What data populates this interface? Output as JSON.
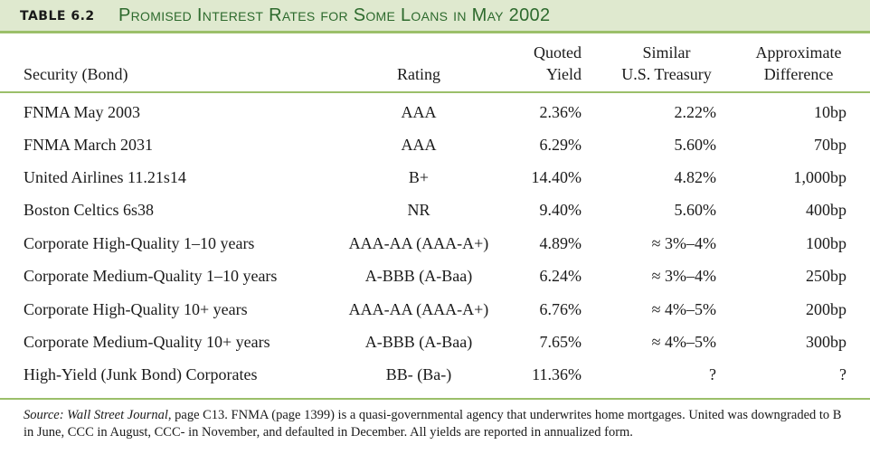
{
  "title": {
    "number": "TABLE 6.2",
    "text": "Promised Interest Rates for Some Loans in May 2002"
  },
  "headers": {
    "security": "Security (Bond)",
    "rating": "Rating",
    "yield_line1": "Quoted",
    "yield_line2": "Yield",
    "treasury_line1": "Similar",
    "treasury_line2": "U.S. Treasury",
    "difference_line1": "Approximate",
    "difference_line2": "Difference"
  },
  "rows": [
    {
      "security": "FNMA May 2003",
      "rating": "AAA",
      "yield": "2.36%",
      "treasury": "2.22%",
      "difference": "10bp"
    },
    {
      "security": "FNMA March 2031",
      "rating": "AAA",
      "yield": "6.29%",
      "treasury": "5.60%",
      "difference": "70bp"
    },
    {
      "security": "United Airlines 11.21s14",
      "rating": "B+",
      "yield": "14.40%",
      "treasury": "4.82%",
      "difference": "1,000bp"
    },
    {
      "security": "Boston Celtics 6s38",
      "rating": "NR",
      "yield": "9.40%",
      "treasury": "5.60%",
      "difference": "400bp"
    },
    {
      "security": "Corporate High-Quality 1–10 years",
      "rating": "AAA-AA (AAA-A+)",
      "yield": "4.89%",
      "treasury": "≈ 3%–4%",
      "difference": "100bp"
    },
    {
      "security": "Corporate Medium-Quality 1–10 years",
      "rating": "A-BBB (A-Baa)",
      "yield": "6.24%",
      "treasury": "≈ 3%–4%",
      "difference": "250bp"
    },
    {
      "security": "Corporate High-Quality 10+ years",
      "rating": "AAA-AA (AAA-A+)",
      "yield": "6.76%",
      "treasury": "≈ 4%–5%",
      "difference": "200bp"
    },
    {
      "security": "Corporate Medium-Quality 10+ years",
      "rating": "A-BBB (A-Baa)",
      "yield": "7.65%",
      "treasury": "≈ 4%–5%",
      "difference": "300bp"
    },
    {
      "security": "High-Yield (Junk Bond) Corporates",
      "rating": "BB- (Ba-)",
      "yield": "11.36%",
      "treasury": "?",
      "difference": "?"
    }
  ],
  "source": {
    "label": "Source: Wall Street Journal",
    "text": ", page C13. FNMA (page 1399) is a quasi-governmental agency that underwrites home mortgages. United was downgraded to B in June, CCC in August, CCC- in November, and defaulted in December. All yields are reported in annualized form."
  },
  "colors": {
    "title_bar": "#dfe9cf",
    "accent_rule": "#9bbf6a",
    "title_text": "#2d6a2d"
  }
}
